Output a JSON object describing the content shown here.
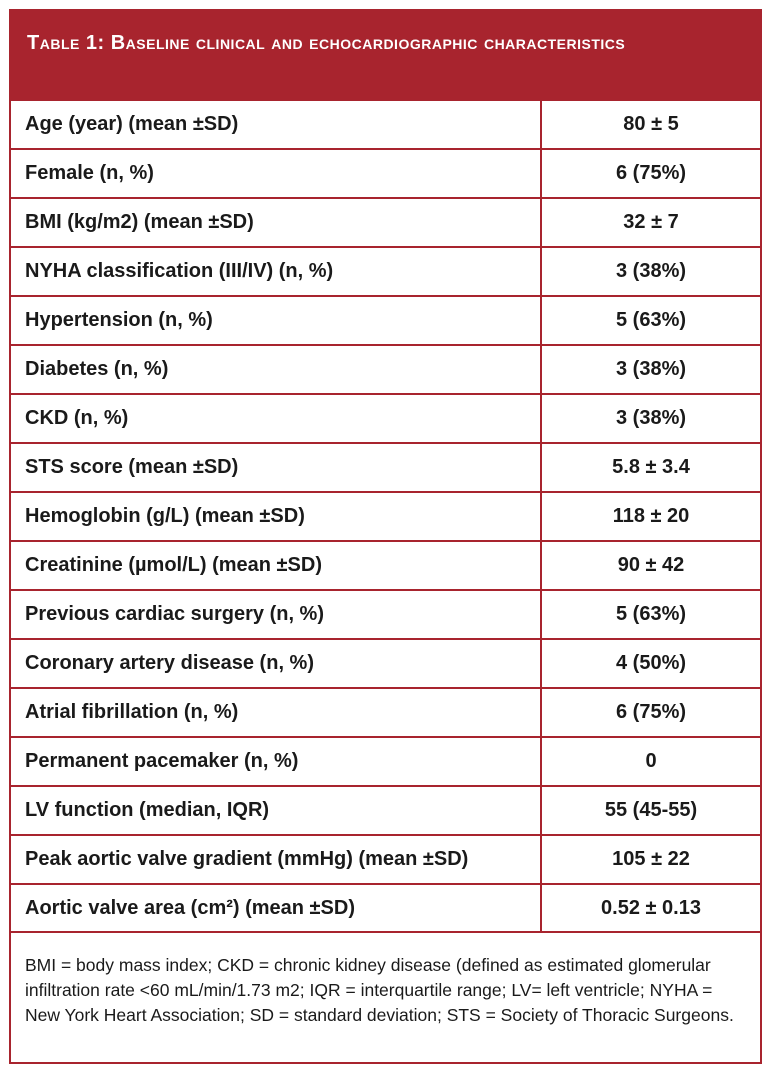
{
  "table": {
    "title": "Table 1: Baseline clinical and echocardiographic characteristics",
    "rows": [
      {
        "label": "Age (year) (mean ±SD)",
        "value": "80 ± 5"
      },
      {
        "label": "Female (n, %)",
        "value": "6 (75%)"
      },
      {
        "label": "BMI (kg/m2) (mean ±SD)",
        "value": "32 ± 7"
      },
      {
        "label": "NYHA classification (III/IV) (n, %)",
        "value": "3 (38%)"
      },
      {
        "label": "Hypertension (n, %)",
        "value": "5 (63%)"
      },
      {
        "label": "Diabetes (n, %)",
        "value": "3 (38%)"
      },
      {
        "label": "CKD (n, %)",
        "value": "3 (38%)"
      },
      {
        "label": "STS score (mean ±SD)",
        "value": "5.8 ± 3.4"
      },
      {
        "label": "Hemoglobin (g/L) (mean ±SD)",
        "value": "118 ± 20"
      },
      {
        "label": "Creatinine (µmol/L) (mean ±SD)",
        "value": "90 ± 42"
      },
      {
        "label": "Previous cardiac surgery (n, %)",
        "value": "5 (63%)"
      },
      {
        "label": "Coronary artery disease (n, %)",
        "value": "4 (50%)"
      },
      {
        "label": "Atrial fibrillation (n, %)",
        "value": "6 (75%)"
      },
      {
        "label": "Permanent pacemaker (n, %)",
        "value": "0"
      },
      {
        "label": "LV function (median, IQR)",
        "value": "55 (45-55)"
      },
      {
        "label": "Peak aortic valve gradient (mmHg) (mean ±SD)",
        "value": "105 ± 22"
      },
      {
        "label": "Aortic valve area (cm²) (mean ±SD)",
        "value": "0.52 ± 0.13"
      }
    ],
    "footnote": "BMI = body mass index; CKD = chronic kidney disease (defined as estimated glomerular infiltration rate <60 mL/min/1.73 m2; IQR = interquartile range; LV= left ventricle; NYHA = New York Heart Association; SD = standard deviation; STS = Society of Thoracic Surgeons."
  },
  "colors": {
    "accent": "#a8242e",
    "text": "#1a1a1a",
    "header_text": "#ffffff"
  }
}
